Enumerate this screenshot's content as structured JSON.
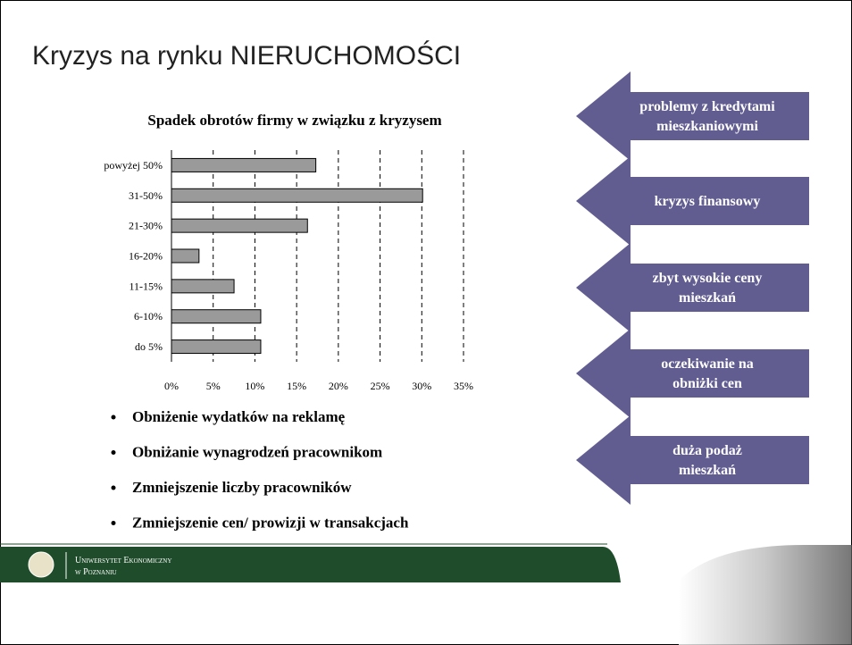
{
  "slide_title": "Kryzys na rynku NIERUCHOMOŚCI",
  "chart_data": {
    "type": "hbar",
    "title": "Spadek obrotów firmy w związku z kryzysem",
    "categories": [
      "powyżej 50%",
      "31-50%",
      "21-30%",
      "16-20%",
      "11-15%",
      "6-10%",
      "do 5%"
    ],
    "values": [
      17.3,
      30.1,
      16.3,
      3.3,
      7.5,
      10.7,
      10.7
    ],
    "color": "#9a9a9a",
    "xlim": [
      0,
      35
    ],
    "xticks": [
      {
        "value": 0,
        "label": "0%"
      },
      {
        "value": 5,
        "label": "5%"
      },
      {
        "value": 10,
        "label": "10%"
      },
      {
        "value": 15,
        "label": "15%"
      },
      {
        "value": 20,
        "label": "20%"
      },
      {
        "value": 25,
        "label": "25%"
      },
      {
        "value": 30,
        "label": "30%"
      },
      {
        "value": 35,
        "label": "35%"
      }
    ],
    "grid": true
  },
  "bullets": [
    "Obniżenie wydatków na reklamę",
    "Obniżanie wynagrodzeń pracownikom",
    "Zmniejszenie liczby pracowników",
    "Zmniejszenie cen/ prowizji w transakcjach"
  ],
  "arrows": [
    [
      "problemy z kredytami",
      "mieszkaniowymi"
    ],
    [
      "kryzys finansowy"
    ],
    [
      "zbyt wysokie ceny",
      "mieszkań"
    ],
    [
      "oczekiwanie na",
      "obniżki cen"
    ],
    [
      "duża podaż",
      "mieszkań"
    ]
  ],
  "footer": {
    "line1": "Uniwersytet Ekonomiczny",
    "line2": "w Poznaniu"
  }
}
